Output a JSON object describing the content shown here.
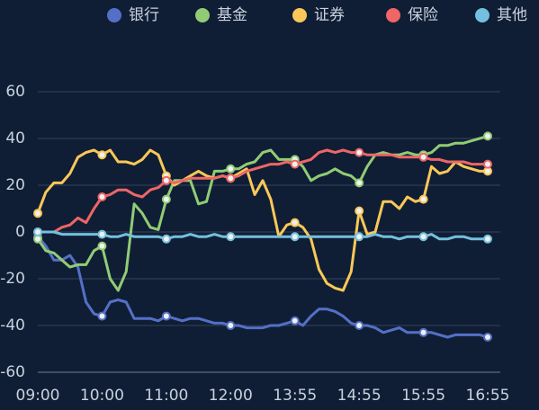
{
  "chart_data": {
    "type": "line",
    "categories": [
      "09:00",
      null,
      null,
      null,
      null,
      null,
      null,
      null,
      "10:00",
      null,
      null,
      null,
      null,
      null,
      null,
      null,
      "11:00",
      null,
      null,
      null,
      null,
      null,
      null,
      null,
      "12:00",
      null,
      null,
      null,
      null,
      null,
      null,
      null,
      "13:55",
      null,
      null,
      null,
      null,
      null,
      null,
      null,
      "14:55",
      null,
      null,
      null,
      null,
      null,
      null,
      null,
      "15:55",
      null,
      null,
      null,
      null,
      null,
      null,
      null,
      "16:55"
    ],
    "ylim": [
      -60,
      60
    ],
    "yticks": [
      -60,
      -40,
      -20,
      0,
      20,
      40,
      60
    ],
    "grid": true,
    "series": [
      {
        "name": "银行",
        "color": "#5470c6",
        "values": [
          -2,
          -6,
          -12,
          -12,
          -10,
          -15,
          -30,
          -35,
          -36,
          -30,
          -29,
          -30,
          -37,
          -37,
          -37,
          -38,
          -36,
          -37,
          -38,
          -37,
          -37,
          -38,
          -39,
          -39,
          -40,
          -40,
          -41,
          -41,
          -41,
          -40,
          -40,
          -39,
          -38,
          -40,
          -36,
          -33,
          -33,
          -34,
          -36,
          -39,
          -40,
          -40,
          -41,
          -43,
          -42,
          -41,
          -43,
          -43,
          -43,
          -43,
          -44,
          -45,
          -44,
          -44,
          -44,
          -44,
          -45
        ]
      },
      {
        "name": "基金",
        "color": "#91cc75",
        "values": [
          -3,
          -8,
          -9,
          -12,
          -15,
          -14,
          -14,
          -8,
          -6,
          -20,
          -25,
          -17,
          12,
          8,
          2,
          1,
          14,
          22,
          22,
          22,
          12,
          13,
          26,
          26,
          27,
          27,
          29,
          30,
          34,
          35,
          31,
          31,
          31,
          28,
          22,
          24,
          25,
          27,
          25,
          24,
          21,
          28,
          33,
          34,
          33,
          33,
          34,
          33,
          33,
          34,
          37,
          37,
          38,
          38,
          39,
          40,
          41
        ]
      },
      {
        "name": "证券",
        "color": "#fac858",
        "values": [
          8,
          17,
          21,
          21,
          25,
          32,
          34,
          35,
          33,
          35,
          30,
          30,
          29,
          31,
          35,
          33,
          24,
          20,
          22,
          24,
          26,
          24,
          23,
          24,
          23,
          25,
          27,
          16,
          22,
          14,
          -2,
          3,
          4,
          2,
          -3,
          -16,
          -22,
          -24,
          -25,
          -17,
          9,
          -1,
          0,
          13,
          13,
          10,
          15,
          13,
          14,
          28,
          25,
          26,
          30,
          28,
          27,
          26,
          26
        ]
      },
      {
        "name": "保险",
        "color": "#ee6666",
        "values": [
          0,
          0,
          0,
          2,
          3,
          6,
          4,
          10,
          15,
          16,
          18,
          18,
          16,
          15,
          18,
          19,
          22,
          21,
          22,
          23,
          23,
          23,
          23,
          24,
          23,
          24,
          26,
          27,
          28,
          29,
          29,
          30,
          29,
          30,
          31,
          34,
          35,
          34,
          35,
          34,
          34,
          33,
          33,
          33,
          33,
          32,
          32,
          32,
          32,
          31,
          31,
          30,
          30,
          30,
          29,
          29,
          29
        ]
      },
      {
        "name": "其他",
        "color": "#73c0de",
        "values": [
          0,
          0,
          0,
          -1,
          -1,
          -1,
          -1,
          -1,
          -1,
          -2,
          -2,
          -1,
          -2,
          -2,
          -2,
          -2,
          -3,
          -2,
          -2,
          -1,
          -2,
          -2,
          -1,
          -2,
          -2,
          -2,
          -2,
          -2,
          -2,
          -2,
          -2,
          -2,
          -2,
          -2,
          -2,
          -2,
          -2,
          -2,
          -2,
          -2,
          -2,
          -2,
          -1,
          -2,
          -2,
          -3,
          -2,
          -2,
          -2,
          -1,
          -3,
          -3,
          -2,
          -2,
          -3,
          -3,
          -3
        ]
      }
    ]
  }
}
